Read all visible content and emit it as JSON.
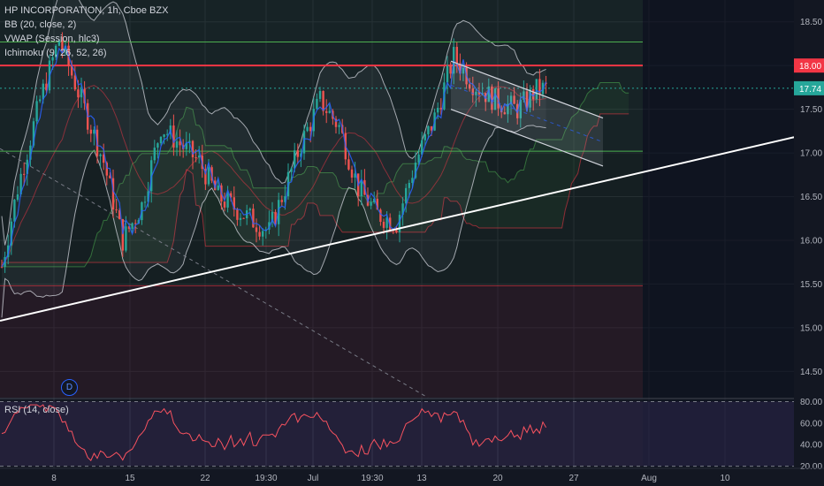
{
  "legend": {
    "title": "HP INCORPORATION, 1h, Cboe BZX",
    "bb": "BB (20, close, 2)",
    "vwap": "VWAP (Session, hlc3)",
    "ichimoku": "Ichimoku (9, 26, 52, 26)"
  },
  "rsi_label": "RSI (14, close)",
  "dividend_badge": "D",
  "price_badges": {
    "level": "18.00",
    "last": "17.74"
  },
  "colors": {
    "background": "#131722",
    "up": "#26a69a",
    "down": "#ef5350",
    "resistance": "#f23645",
    "trendline": "#ffffff",
    "channel": "#d1d4dc",
    "green_level": "#4caf50",
    "last_price": "#26a69a",
    "rsi_line": "#f7525f",
    "rsi_band": "#7e57c2"
  },
  "chart_data": [
    {
      "type": "candlestick",
      "title": "HP INCORPORATION, 1h, Cboe BZX",
      "x_tick_labels": [
        "8",
        "15",
        "22",
        "19:30",
        "Jul",
        "19:30",
        "13",
        "20",
        "27",
        "Aug",
        "10"
      ],
      "y_tick_labels": [
        "18.50",
        "18.00",
        "17.50",
        "17.00",
        "16.50",
        "16.00",
        "15.50",
        "15.00",
        "14.50"
      ],
      "ylim": [
        14.2,
        18.75
      ],
      "last_price": 17.74,
      "horizontal_levels": [
        {
          "name": "resistance",
          "value": 18.0
        },
        {
          "name": "upper green level",
          "value": 18.27
        },
        {
          "name": "lower green level",
          "value": 17.02
        },
        {
          "name": "zone bottom",
          "value": 15.48
        }
      ],
      "trendline": {
        "from_bar": 0,
        "from_value": 15.08,
        "to_bar": 250,
        "to_value": 17.18
      },
      "bars": 200,
      "grid": true,
      "indicators": [
        "BB (20, close, 2)",
        "VWAP (Session, hlc3)",
        "Ichimoku (9, 26, 52, 26)"
      ]
    },
    {
      "type": "line",
      "title": "RSI (14, close)",
      "y_tick_labels": [
        "80.00",
        "60.00",
        "40.00",
        "20.00"
      ],
      "ylim": [
        18,
        82
      ],
      "bands": [
        80,
        20
      ],
      "last_value": 56
    }
  ]
}
